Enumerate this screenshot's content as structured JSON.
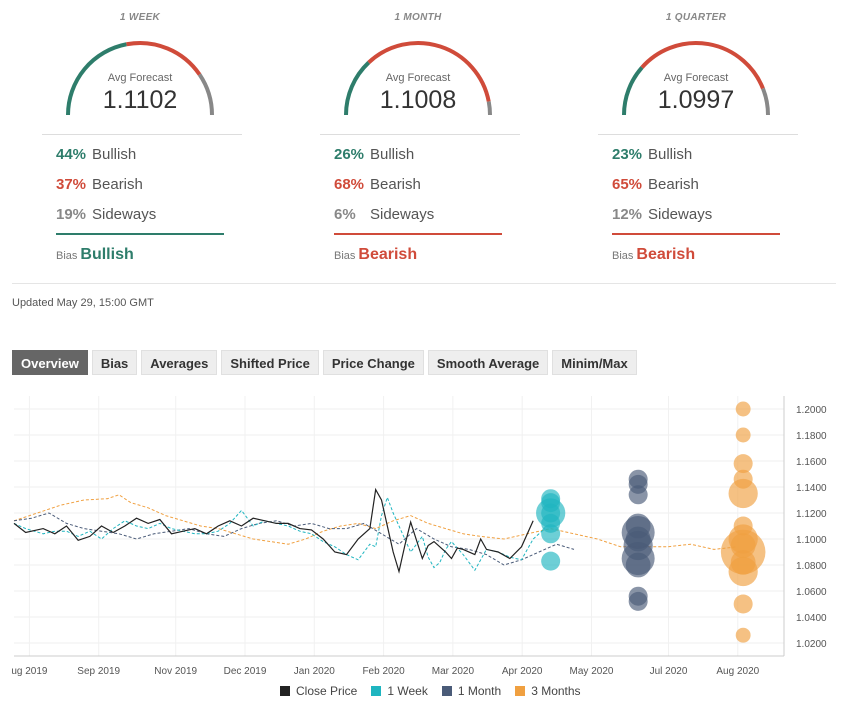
{
  "panels": [
    {
      "title": "1 WEEK",
      "subtitle": "Avg Forecast",
      "value": "1.1102",
      "rows": [
        {
          "pct": "44%",
          "label": "Bullish"
        },
        {
          "pct": "37%",
          "label": "Bearish"
        },
        {
          "pct": "19%",
          "label": "Sideways"
        }
      ],
      "bias_label": "Bias",
      "bias_value": "Bullish",
      "bias_color": "#2e7d6b",
      "gauge": {
        "green": 0.44,
        "red": 0.37,
        "gray": 0.19
      }
    },
    {
      "title": "1 MONTH",
      "subtitle": "Avg Forecast",
      "value": "1.1008",
      "rows": [
        {
          "pct": "26%",
          "label": "Bullish"
        },
        {
          "pct": "68%",
          "label": "Bearish"
        },
        {
          "pct": "6%",
          "label": "Sideways"
        }
      ],
      "bias_label": "Bias",
      "bias_value": "Bearish",
      "bias_color": "#d04b3a",
      "gauge": {
        "green": 0.26,
        "red": 0.68,
        "gray": 0.06
      }
    },
    {
      "title": "1 QUARTER",
      "subtitle": "Avg Forecast",
      "value": "1.0997",
      "rows": [
        {
          "pct": "23%",
          "label": "Bullish"
        },
        {
          "pct": "65%",
          "label": "Bearish"
        },
        {
          "pct": "12%",
          "label": "Sideways"
        }
      ],
      "bias_label": "Bias",
      "bias_value": "Bearish",
      "bias_color": "#d04b3a",
      "gauge": {
        "green": 0.23,
        "red": 0.65,
        "gray": 0.12
      }
    }
  ],
  "colors": {
    "bullish": "#2e7d6b",
    "bearish": "#d04b3a",
    "sideways": "#888888",
    "close": "#222222",
    "week": "#1fb5c0",
    "month": "#4a5b78",
    "quarter": "#f0a040"
  },
  "updated": "Updated May 29, 15:00 GMT",
  "tabs": [
    "Overview",
    "Bias",
    "Averages",
    "Shifted Price",
    "Price Change",
    "Smooth Average",
    "Minim/Max"
  ],
  "chart_data": {
    "type": "line",
    "x_labels": [
      "ug 2019",
      "Sep 2019",
      "Nov 2019",
      "Dec 2019",
      "Jan 2020",
      "Feb 2020",
      "Mar 2020",
      "Apr 2020",
      "May 2020",
      "Jul 2020",
      "Aug 2020"
    ],
    "y_ticks": [
      "1.2000",
      "1.1800",
      "1.1600",
      "1.1400",
      "1.1200",
      "1.1000",
      "1.0800",
      "1.0600",
      "1.0400",
      "1.0200"
    ],
    "ylim": [
      1.01,
      1.21
    ],
    "legend": [
      "Close Price",
      "1 Week",
      "1 Month",
      "3 Months"
    ],
    "series": [
      {
        "name": "Close Price",
        "style": "solid",
        "points": [
          [
            0,
            1.112
          ],
          [
            2,
            1.105
          ],
          [
            5,
            1.108
          ],
          [
            7,
            1.104
          ],
          [
            9,
            1.11
          ],
          [
            11,
            1.099
          ],
          [
            13,
            1.102
          ],
          [
            15,
            1.11
          ],
          [
            17,
            1.105
          ],
          [
            19,
            1.11
          ],
          [
            21,
            1.116
          ],
          [
            23,
            1.112
          ],
          [
            25,
            1.115
          ],
          [
            27,
            1.104
          ],
          [
            29,
            1.106
          ],
          [
            31,
            1.108
          ],
          [
            33,
            1.104
          ],
          [
            35,
            1.11
          ],
          [
            37,
            1.114
          ],
          [
            39,
            1.11
          ],
          [
            41,
            1.116
          ],
          [
            43,
            1.114
          ],
          [
            45,
            1.112
          ],
          [
            47,
            1.112
          ],
          [
            49,
            1.108
          ],
          [
            51,
            1.107
          ],
          [
            53,
            1.1
          ],
          [
            55,
            1.09
          ],
          [
            57,
            1.088
          ],
          [
            59,
            1.1
          ],
          [
            61,
            1.108
          ],
          [
            62,
            1.138
          ],
          [
            63,
            1.13
          ],
          [
            65,
            1.09
          ],
          [
            66,
            1.075
          ],
          [
            67,
            1.095
          ],
          [
            68,
            1.113
          ],
          [
            70,
            1.085
          ],
          [
            71,
            1.095
          ],
          [
            72,
            1.098
          ],
          [
            74,
            1.09
          ],
          [
            75,
            1.085
          ],
          [
            76,
            1.093
          ],
          [
            77,
            1.092
          ],
          [
            79,
            1.088
          ],
          [
            80,
            1.1
          ],
          [
            81,
            1.092
          ],
          [
            83,
            1.09
          ],
          [
            85,
            1.085
          ],
          [
            87,
            1.094
          ],
          [
            89,
            1.114
          ]
        ]
      },
      {
        "name": "1 Week",
        "style": "dashed",
        "points": [
          [
            0,
            1.112
          ],
          [
            2,
            1.108
          ],
          [
            5,
            1.104
          ],
          [
            7,
            1.106
          ],
          [
            9,
            1.106
          ],
          [
            11,
            1.102
          ],
          [
            13,
            1.106
          ],
          [
            15,
            1.1
          ],
          [
            17,
            1.108
          ],
          [
            19,
            1.114
          ],
          [
            21,
            1.11
          ],
          [
            23,
            1.108
          ],
          [
            25,
            1.112
          ],
          [
            27,
            1.108
          ],
          [
            29,
            1.106
          ],
          [
            31,
            1.104
          ],
          [
            33,
            1.104
          ],
          [
            35,
            1.106
          ],
          [
            37,
            1.112
          ],
          [
            39,
            1.122
          ],
          [
            41,
            1.11
          ],
          [
            43,
            1.114
          ],
          [
            45,
            1.112
          ],
          [
            47,
            1.11
          ],
          [
            49,
            1.106
          ],
          [
            51,
            1.104
          ],
          [
            53,
            1.098
          ],
          [
            55,
            1.094
          ],
          [
            57,
            1.088
          ],
          [
            59,
            1.084
          ],
          [
            61,
            1.096
          ],
          [
            62,
            1.094
          ],
          [
            63,
            1.118
          ],
          [
            64,
            1.132
          ],
          [
            65,
            1.12
          ],
          [
            66,
            1.11
          ],
          [
            68,
            1.09
          ],
          [
            70,
            1.102
          ],
          [
            71,
            1.086
          ],
          [
            72,
            1.078
          ],
          [
            73,
            1.082
          ],
          [
            74,
            1.092
          ],
          [
            75,
            1.098
          ],
          [
            77,
            1.088
          ],
          [
            79,
            1.076
          ],
          [
            81,
            1.092
          ],
          [
            83,
            1.09
          ],
          [
            85,
            1.086
          ],
          [
            87,
            1.084
          ],
          [
            89,
            1.1
          ],
          [
            91,
            1.108
          ]
        ]
      },
      {
        "name": "1 Month",
        "style": "dashed",
        "points": [
          [
            0,
            1.114
          ],
          [
            3,
            1.116
          ],
          [
            6,
            1.12
          ],
          [
            9,
            1.112
          ],
          [
            12,
            1.108
          ],
          [
            15,
            1.106
          ],
          [
            18,
            1.104
          ],
          [
            21,
            1.1
          ],
          [
            24,
            1.104
          ],
          [
            27,
            1.106
          ],
          [
            30,
            1.108
          ],
          [
            33,
            1.104
          ],
          [
            36,
            1.102
          ],
          [
            39,
            1.108
          ],
          [
            42,
            1.112
          ],
          [
            45,
            1.114
          ],
          [
            48,
            1.11
          ],
          [
            51,
            1.112
          ],
          [
            54,
            1.108
          ],
          [
            57,
            1.108
          ],
          [
            60,
            1.112
          ],
          [
            63,
            1.104
          ],
          [
            66,
            1.096
          ],
          [
            69,
            1.108
          ],
          [
            72,
            1.1
          ],
          [
            75,
            1.094
          ],
          [
            78,
            1.092
          ],
          [
            81,
            1.088
          ],
          [
            84,
            1.08
          ],
          [
            87,
            1.084
          ],
          [
            90,
            1.09
          ],
          [
            93,
            1.096
          ],
          [
            96,
            1.092
          ]
        ]
      },
      {
        "name": "3 Months",
        "style": "dashed",
        "points": [
          [
            0,
            1.114
          ],
          [
            4,
            1.12
          ],
          [
            8,
            1.126
          ],
          [
            12,
            1.13
          ],
          [
            16,
            1.131
          ],
          [
            18,
            1.134
          ],
          [
            20,
            1.128
          ],
          [
            23,
            1.124
          ],
          [
            26,
            1.118
          ],
          [
            29,
            1.114
          ],
          [
            32,
            1.11
          ],
          [
            35,
            1.108
          ],
          [
            38,
            1.104
          ],
          [
            41,
            1.1
          ],
          [
            44,
            1.098
          ],
          [
            47,
            1.096
          ],
          [
            50,
            1.1
          ],
          [
            53,
            1.106
          ],
          [
            56,
            1.11
          ],
          [
            59,
            1.112
          ],
          [
            62,
            1.108
          ],
          [
            65,
            1.114
          ],
          [
            68,
            1.118
          ],
          [
            71,
            1.112
          ],
          [
            74,
            1.108
          ],
          [
            77,
            1.104
          ],
          [
            80,
            1.102
          ],
          [
            84,
            1.1
          ],
          [
            88,
            1.104
          ],
          [
            92,
            1.108
          ],
          [
            96,
            1.104
          ],
          [
            100,
            1.1
          ],
          [
            104,
            1.094
          ],
          [
            108,
            1.094
          ],
          [
            112,
            1.094
          ],
          [
            116,
            1.096
          ],
          [
            120,
            1.092
          ],
          [
            124,
            1.094
          ]
        ]
      }
    ],
    "bubbles": [
      {
        "series": "1 Week",
        "x": 92,
        "ys": [
          1.131,
          1.128,
          1.12,
          1.12,
          1.112,
          1.104,
          1.083
        ],
        "sizes": [
          1,
          1,
          1,
          3,
          1,
          1,
          1
        ]
      },
      {
        "series": "1 Month",
        "x": 107,
        "ys": [
          1.146,
          1.142,
          1.134,
          1.11,
          1.105,
          1.1,
          1.095,
          1.085,
          1.08,
          1.056,
          1.052
        ],
        "sizes": [
          1,
          1,
          1,
          2,
          4,
          2,
          3,
          4,
          2,
          1,
          1
        ]
      },
      {
        "series": "3 Months",
        "x": 125,
        "ys": [
          1.2,
          1.18,
          1.158,
          1.146,
          1.135,
          1.11,
          1.1,
          1.095,
          1.09,
          1.082,
          1.075,
          1.05,
          1.026
        ],
        "sizes": [
          0.5,
          0.5,
          1,
          1,
          3,
          1,
          3,
          2,
          8,
          2,
          3,
          1,
          0.5
        ]
      }
    ]
  }
}
